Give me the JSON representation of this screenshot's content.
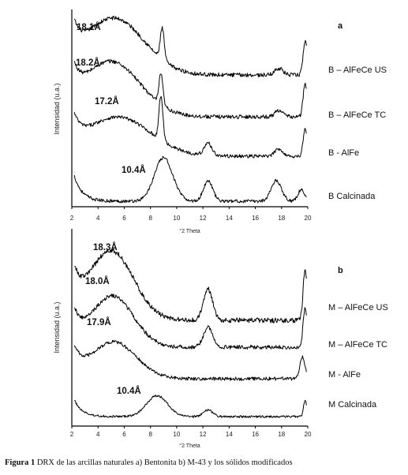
{
  "caption": {
    "label": "Figura 1",
    "text": "DRX de las arcillas naturales a) Bentonita b) M-43 y los sólidos modificados"
  },
  "chart_data": [
    {
      "type": "line",
      "panel": "a",
      "ylabel": "Intensidad (u.a.)",
      "xlabel": "°2 Theta",
      "xlim": [
        2,
        20
      ],
      "xticks": [
        "2",
        "4",
        "6",
        "8",
        "10",
        "12",
        "14",
        "16",
        "18",
        "20"
      ],
      "series": [
        {
          "name": "B – AlFeCe US",
          "annotation": "18.1Å",
          "peaks": [
            [
              5.2,
              1.0,
              2.3
            ],
            [
              8.9,
              0.55,
              0.15
            ],
            [
              17.8,
              0.12,
              0.3
            ],
            [
              19.8,
              0.6,
              0.15
            ]
          ],
          "base": 0.0
        },
        {
          "name": "B – AlFeCe TC",
          "annotation": "18.2Å",
          "peaks": [
            [
              5.0,
              1.0,
              2.2
            ],
            [
              8.8,
              0.55,
              0.15
            ],
            [
              17.8,
              0.12,
              0.3
            ],
            [
              19.8,
              0.6,
              0.15
            ]
          ],
          "base": 0.0
        },
        {
          "name": "B - AlFe",
          "annotation": "17.2Å",
          "peaks": [
            [
              5.5,
              0.8,
              2.5
            ],
            [
              8.8,
              0.9,
              0.15
            ],
            [
              12.4,
              0.25,
              0.3
            ],
            [
              17.8,
              0.15,
              0.3
            ],
            [
              19.8,
              0.55,
              0.15
            ]
          ],
          "base": 0.0
        },
        {
          "name": "B Calcinada",
          "annotation": "10.4Å",
          "peaks": [
            [
              9.0,
              0.95,
              0.7
            ],
            [
              12.4,
              0.45,
              0.35
            ],
            [
              17.6,
              0.45,
              0.4
            ],
            [
              19.5,
              0.25,
              0.25
            ]
          ],
          "base": 0.0
        }
      ]
    },
    {
      "type": "line",
      "panel": "b",
      "ylabel": "Intensidad (u.a.)",
      "xlabel": "°2 Theta",
      "xlim": [
        2,
        20
      ],
      "xticks": [
        "2",
        "4",
        "6",
        "8",
        "10",
        "12",
        "14",
        "16",
        "18",
        "20"
      ],
      "series": [
        {
          "name": "M – AlFeCe US",
          "annotation": "18.3Å",
          "peaks": [
            [
              5.0,
              1.0,
              1.7
            ],
            [
              12.4,
              0.45,
              0.35
            ],
            [
              19.8,
              0.75,
              0.15
            ]
          ],
          "base": 0.0
        },
        {
          "name": "M – AlFeCe TC",
          "annotation": "18.0Å",
          "peaks": [
            [
              5.1,
              0.9,
              1.6
            ],
            [
              12.4,
              0.35,
              0.35
            ],
            [
              19.8,
              0.7,
              0.15
            ]
          ],
          "base": 0.0
        },
        {
          "name": "M - AlFe",
          "annotation": "17.9Å",
          "peaks": [
            [
              5.2,
              0.75,
              1.7
            ],
            [
              19.6,
              0.45,
              0.2
            ]
          ],
          "base": 0.0
        },
        {
          "name": "M Calcinada",
          "annotation": "10.4Å",
          "peaks": [
            [
              8.5,
              0.7,
              0.8
            ],
            [
              12.4,
              0.22,
              0.35
            ],
            [
              19.8,
              0.55,
              0.12
            ]
          ],
          "base": 0.0
        }
      ]
    }
  ]
}
